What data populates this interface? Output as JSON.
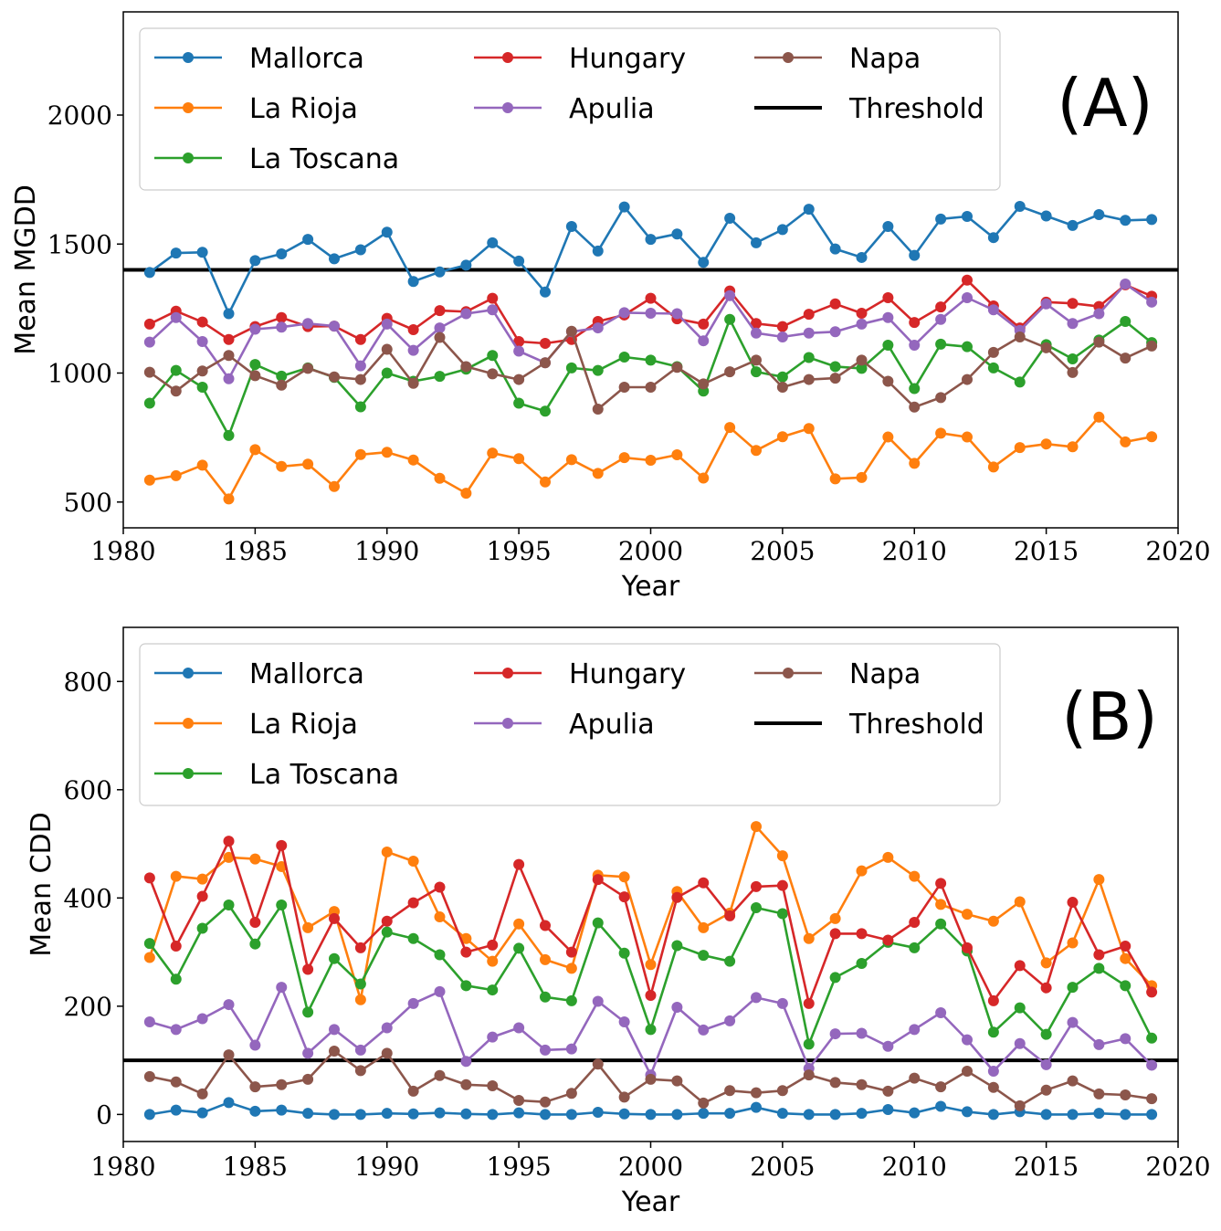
{
  "chart_data": [
    {
      "type": "line",
      "panel_label": "(A)",
      "xlabel": "Year",
      "ylabel": "Mean MGDD",
      "xlim": [
        1980,
        2020
      ],
      "ylim": [
        400,
        2400
      ],
      "xticks": [
        1980,
        1985,
        1990,
        1995,
        2000,
        2005,
        2010,
        2015,
        2020
      ],
      "yticks": [
        500,
        1000,
        1500,
        2000
      ],
      "legend_position": "top-left",
      "threshold": 1400,
      "threshold_label": "Threshold",
      "x": [
        1981,
        1982,
        1983,
        1984,
        1985,
        1986,
        1987,
        1988,
        1989,
        1990,
        1991,
        1992,
        1993,
        1994,
        1995,
        1996,
        1997,
        1998,
        1999,
        2000,
        2001,
        2002,
        2003,
        2004,
        2005,
        2006,
        2007,
        2008,
        2009,
        2010,
        2011,
        2012,
        2013,
        2014,
        2015,
        2016,
        2017,
        2018,
        2019
      ],
      "series": [
        {
          "name": "Mallorca",
          "color": "#1f77b4",
          "values": [
            1390,
            1465,
            1468,
            1230,
            1436,
            1462,
            1518,
            1443,
            1478,
            1546,
            1355,
            1392,
            1418,
            1505,
            1434,
            1314,
            1568,
            1473,
            1644,
            1518,
            1539,
            1429,
            1600,
            1505,
            1556,
            1635,
            1481,
            1448,
            1568,
            1456,
            1597,
            1607,
            1525,
            1646,
            1609,
            1572,
            1614,
            1592,
            1595
          ]
        },
        {
          "name": "La Rioja",
          "color": "#ff7f0e",
          "values": [
            585,
            602,
            643,
            512,
            703,
            638,
            647,
            560,
            684,
            693,
            663,
            592,
            534,
            690,
            668,
            578,
            664,
            611,
            672,
            662,
            683,
            593,
            789,
            700,
            753,
            785,
            590,
            595,
            752,
            650,
            767,
            752,
            636,
            711,
            725,
            714,
            829,
            733,
            753
          ]
        },
        {
          "name": "La Toscana",
          "color": "#2ca02c",
          "values": [
            883,
            1010,
            945,
            758,
            1033,
            988,
            1020,
            983,
            869,
            1000,
            968,
            987,
            1015,
            1068,
            883,
            852,
            1020,
            1010,
            1062,
            1050,
            1025,
            930,
            1208,
            1005,
            985,
            1060,
            1025,
            1018,
            1108,
            940,
            1112,
            1102,
            1020,
            965,
            1110,
            1055,
            1128,
            1200,
            1118
          ]
        },
        {
          "name": "Hungary",
          "color": "#d62728",
          "values": [
            1190,
            1240,
            1198,
            1130,
            1180,
            1215,
            1180,
            1182,
            1130,
            1212,
            1168,
            1242,
            1238,
            1290,
            1122,
            1115,
            1130,
            1200,
            1225,
            1290,
            1210,
            1190,
            1318,
            1192,
            1180,
            1228,
            1268,
            1232,
            1292,
            1196,
            1256,
            1360,
            1260,
            1175,
            1275,
            1270,
            1258,
            1342,
            1298
          ]
        },
        {
          "name": "Apulia",
          "color": "#9467bd",
          "values": [
            1120,
            1215,
            1122,
            978,
            1170,
            1178,
            1192,
            1182,
            1028,
            1190,
            1088,
            1175,
            1230,
            1245,
            1085,
            1040,
            1160,
            1175,
            1234,
            1232,
            1230,
            1125,
            1300,
            1155,
            1140,
            1155,
            1160,
            1190,
            1215,
            1108,
            1208,
            1292,
            1245,
            1165,
            1268,
            1192,
            1230,
            1345,
            1275
          ]
        },
        {
          "name": "Napa",
          "color": "#8c564b",
          "values": [
            1003,
            930,
            1008,
            1068,
            990,
            953,
            1018,
            985,
            975,
            1092,
            960,
            1138,
            1025,
            997,
            975,
            1040,
            1162,
            860,
            945,
            945,
            1022,
            958,
            1005,
            1050,
            945,
            975,
            980,
            1050,
            968,
            868,
            905,
            975,
            1080,
            1140,
            1098,
            1002,
            1120,
            1058,
            1105
          ]
        }
      ]
    },
    {
      "type": "line",
      "panel_label": "(B)",
      "xlabel": "Year",
      "ylabel": "Mean CDD",
      "xlim": [
        1980,
        2020
      ],
      "ylim": [
        -50,
        900
      ],
      "xticks": [
        1980,
        1985,
        1990,
        1995,
        2000,
        2005,
        2010,
        2015,
        2020
      ],
      "yticks": [
        0,
        200,
        400,
        600,
        800
      ],
      "legend_position": "top-left",
      "threshold": 100,
      "threshold_label": "Threshold",
      "x": [
        1981,
        1982,
        1983,
        1984,
        1985,
        1986,
        1987,
        1988,
        1989,
        1990,
        1991,
        1992,
        1993,
        1994,
        1995,
        1996,
        1997,
        1998,
        1999,
        2000,
        2001,
        2002,
        2003,
        2004,
        2005,
        2006,
        2007,
        2008,
        2009,
        2010,
        2011,
        2012,
        2013,
        2014,
        2015,
        2016,
        2017,
        2018,
        2019
      ],
      "series": [
        {
          "name": "Mallorca",
          "color": "#1f77b4",
          "values": [
            0,
            8,
            3,
            22,
            6,
            8,
            2,
            0,
            0,
            2,
            1,
            3,
            1,
            0,
            3,
            0,
            0,
            4,
            1,
            0,
            0,
            2,
            2,
            13,
            2,
            0,
            0,
            2,
            9,
            3,
            15,
            5,
            0,
            5,
            0,
            0,
            2,
            0,
            0
          ]
        },
        {
          "name": "La Rioja",
          "color": "#ff7f0e",
          "values": [
            290,
            440,
            435,
            475,
            472,
            458,
            345,
            375,
            212,
            485,
            468,
            365,
            325,
            283,
            352,
            286,
            270,
            442,
            439,
            277,
            412,
            345,
            372,
            532,
            478,
            325,
            362,
            450,
            475,
            440,
            388,
            370,
            357,
            393,
            280,
            317,
            434,
            288,
            238
          ]
        },
        {
          "name": "La Toscana",
          "color": "#2ca02c",
          "values": [
            316,
            250,
            344,
            387,
            315,
            387,
            189,
            288,
            241,
            337,
            325,
            295,
            238,
            230,
            307,
            217,
            210,
            354,
            298,
            157,
            312,
            294,
            283,
            382,
            371,
            130,
            253,
            279,
            318,
            308,
            352,
            302,
            152,
            197,
            148,
            235,
            270,
            238,
            141
          ]
        },
        {
          "name": "Hungary",
          "color": "#d62728",
          "values": [
            437,
            311,
            403,
            505,
            355,
            497,
            268,
            362,
            308,
            357,
            391,
            420,
            300,
            313,
            462,
            349,
            300,
            434,
            402,
            220,
            401,
            428,
            367,
            421,
            423,
            205,
            334,
            334,
            322,
            355,
            427,
            308,
            210,
            275,
            234,
            392,
            295,
            311,
            226
          ]
        },
        {
          "name": "Apulia",
          "color": "#9467bd",
          "values": [
            171,
            157,
            177,
            203,
            128,
            235,
            113,
            157,
            119,
            160,
            205,
            227,
            98,
            143,
            160,
            119,
            121,
            209,
            171,
            73,
            198,
            156,
            173,
            216,
            205,
            85,
            149,
            150,
            126,
            157,
            188,
            138,
            80,
            131,
            92,
            170,
            129,
            140,
            91
          ]
        },
        {
          "name": "Napa",
          "color": "#8c564b",
          "values": [
            70,
            60,
            38,
            110,
            51,
            55,
            65,
            117,
            81,
            113,
            43,
            72,
            55,
            53,
            26,
            23,
            39,
            93,
            32,
            65,
            62,
            21,
            44,
            40,
            44,
            73,
            59,
            55,
            43,
            67,
            51,
            80,
            50,
            16,
            45,
            62,
            38,
            36,
            29
          ]
        }
      ]
    }
  ]
}
